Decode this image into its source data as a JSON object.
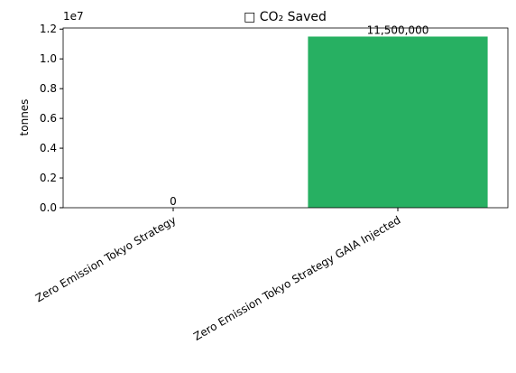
{
  "chart_data": {
    "type": "bar",
    "title": "□ CO₂ Saved",
    "ylabel": "tonnes",
    "y_offset_label": "1e7",
    "categories": [
      "Zero Emission Tokyo Strategy",
      "Zero Emission Tokyo Strategy GAIA Injected"
    ],
    "values": [
      0,
      11500000
    ],
    "value_labels": [
      "0",
      "11,500,000"
    ],
    "color": "#27b062",
    "ylim": [
      0,
      12075000
    ],
    "yticks": [
      {
        "value": 0,
        "label": "0.0"
      },
      {
        "value": 2000000,
        "label": "0.2"
      },
      {
        "value": 4000000,
        "label": "0.4"
      },
      {
        "value": 6000000,
        "label": "0.6"
      },
      {
        "value": 8000000,
        "label": "0.8"
      },
      {
        "value": 10000000,
        "label": "1.0"
      },
      {
        "value": 12000000,
        "label": "1.2"
      }
    ]
  }
}
